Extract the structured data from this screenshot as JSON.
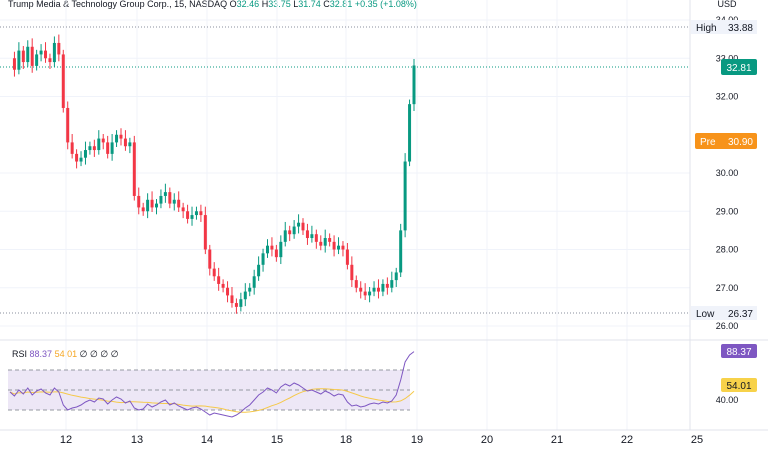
{
  "header": {
    "symbol": "Trump Media & Technology Group Corp., 15, NASDAQ",
    "open_label": "O",
    "open": "32.46",
    "high_label": "H",
    "high": "33.75",
    "low_label": "L",
    "low": "31.74",
    "close_label": "C",
    "close": "32.81",
    "change": "+0.35 (+1.08%)"
  },
  "currency": "USD",
  "price_tags": {
    "high_label": "High",
    "high_value": "33.88",
    "last_value": "32.81",
    "pre_label": "Pre",
    "pre_value": "30.90",
    "low_label": "Low",
    "low_value": "26.37"
  },
  "rsi": {
    "label": "RSI",
    "value": "88.37",
    "ma_value": "54.01",
    "extra": [
      "∅",
      "∅",
      "∅",
      "∅"
    ],
    "tag_value": "88.37",
    "ma_tag_value": "54.01",
    "bands": [
      30,
      70
    ],
    "axis_label_40": "40.00"
  },
  "colors": {
    "up": "#089981",
    "down": "#f23645",
    "rsi": "#7e57c2",
    "rsi_ma": "#f5d76e",
    "pre": "#f7931a",
    "grid": "#e0e3eb",
    "band_fill": "#ede7f6"
  },
  "chart_data": {
    "type": "candlestick",
    "y_ticks": [
      "26.00",
      "27.00",
      "28.00",
      "29.00",
      "30.00",
      "32.00",
      "33.00",
      "34.00"
    ],
    "x_ticks": [
      "12",
      "13",
      "14",
      "15",
      "18",
      "19",
      "20",
      "21",
      "22",
      "25"
    ],
    "ylim": [
      26,
      34
    ],
    "price_path": [
      33.0,
      32.7,
      33.2,
      32.9,
      33.3,
      32.8,
      33.1,
      33.2,
      33.0,
      32.9,
      33.4,
      33.1,
      31.7,
      30.8,
      30.5,
      30.3,
      30.4,
      30.6,
      30.7,
      30.6,
      30.9,
      30.8,
      30.5,
      30.8,
      31.0,
      30.9,
      30.7,
      30.8,
      29.4,
      29.1,
      29.0,
      29.3,
      29.1,
      29.2,
      29.4,
      29.5,
      29.2,
      29.3,
      29.1,
      29.0,
      28.8,
      28.9,
      29.0,
      28.9,
      28.0,
      27.5,
      27.3,
      27.1,
      27.0,
      26.8,
      26.6,
      26.5,
      26.7,
      26.9,
      27.0,
      27.3,
      27.6,
      27.9,
      28.1,
      28.0,
      27.8,
      28.2,
      28.5,
      28.4,
      28.6,
      28.7,
      28.5,
      28.3,
      28.4,
      28.2,
      28.1,
      28.3,
      28.2,
      28.0,
      28.1,
      28.0,
      27.6,
      27.2,
      27.0,
      26.9,
      26.8,
      26.9,
      27.0,
      26.9,
      27.1,
      27.0,
      27.2,
      27.4,
      28.5,
      30.3,
      31.8,
      32.81
    ],
    "rsi_values": [
      48,
      44,
      50,
      46,
      52,
      45,
      49,
      51,
      47,
      45,
      52,
      48,
      35,
      30,
      32,
      33,
      35,
      38,
      40,
      38,
      42,
      41,
      36,
      40,
      43,
      41,
      37,
      39,
      32,
      30,
      31,
      36,
      33,
      35,
      38,
      40,
      35,
      37,
      34,
      32,
      30,
      32,
      33,
      31,
      28,
      25,
      27,
      26,
      25,
      24,
      23,
      25,
      28,
      32,
      35,
      40,
      45,
      48,
      52,
      50,
      47,
      53,
      56,
      54,
      57,
      55,
      52,
      49,
      50,
      48,
      46,
      49,
      47,
      44,
      46,
      45,
      38,
      34,
      35,
      33,
      34,
      36,
      37,
      36,
      38,
      37,
      39,
      45,
      60,
      78,
      85,
      88.37
    ]
  }
}
